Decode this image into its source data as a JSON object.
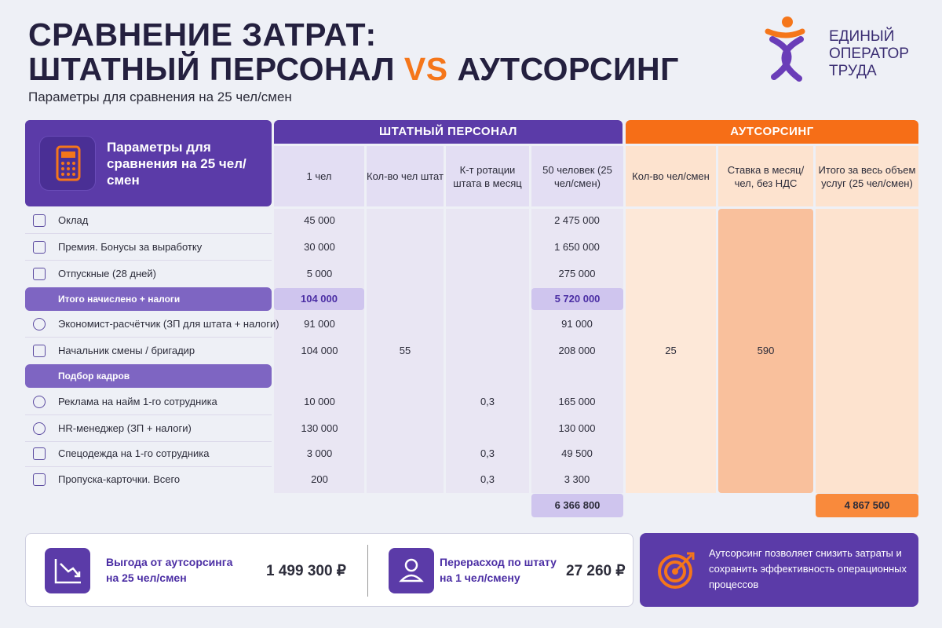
{
  "title": {
    "line1": "СРАВНЕНИЕ ЗАТРАТ:",
    "line2_a": "ШТАТНЫЙ ПЕРСОНАЛ ",
    "line2_vs": "VS",
    "line2_b": " АУТСОРСИНГ"
  },
  "subtitle": "Параметры для сравнения на 25 чел/смен",
  "logo": {
    "line1": "ЕДИНЫЙ",
    "line2": "ОПЕРАТОР",
    "line3": "ТРУДА"
  },
  "params_header": "Параметры для сравнения на 25 чел/смен",
  "group_headers": {
    "staff": "ШТАТНЫЙ ПЕРСОНАЛ",
    "outsourcing": "АУТСОРСИНГ"
  },
  "columns": {
    "staff": [
      "1 чел",
      "Кол-во чел штат",
      "К-т ротации штата в месяц",
      "50 человек (25 чел/смен)"
    ],
    "outsourcing": [
      "Кол-во чел/смен",
      "Ставка в месяц/чел, без НДС",
      "Итого за весь объем услуг (25 чел/смен)"
    ]
  },
  "rows": [
    {
      "label": "Оклад",
      "one": "45 000",
      "kt": "",
      "total50": "2 475 000"
    },
    {
      "label": "Премия. Бонусы за выработку",
      "one": "30 000",
      "kt": "",
      "total50": "1 650 000"
    },
    {
      "label": "Отпускные (28 дней)",
      "one": "5 000",
      "kt": "",
      "total50": "275 000"
    }
  ],
  "subtotal": {
    "label": "Итого начислено + налоги",
    "one": "104 000",
    "total50": "5 720 000"
  },
  "rows2": [
    {
      "label": "Экономист-расчётчик (ЗП для штата + налоги)",
      "one": "91 000",
      "kt": "",
      "total50": "91 000"
    },
    {
      "label": "Начальник смены / бригадир",
      "one": "104 000",
      "kt": "",
      "total50": "208 000"
    }
  ],
  "section": "Подбор кадров",
  "rows3": [
    {
      "label": "Реклама на найм 1-го сотрудника",
      "one": "10 000",
      "kt": "0,3",
      "total50": "165 000"
    },
    {
      "label": "HR-менеджер (ЗП + налоги)",
      "one": "130 000",
      "kt": "",
      "total50": "130 000"
    },
    {
      "label": "Спецодежда на 1-го сотрудника",
      "one": "3 000",
      "kt": "0,3",
      "total50": "49 500"
    },
    {
      "label": "Пропуска-карточки. Всего",
      "one": "200",
      "kt": "0,3",
      "total50": "3 300"
    }
  ],
  "merged": {
    "staff_count": "55",
    "out_count": "25",
    "out_rate": "590"
  },
  "totals": {
    "staff": "6 366 800",
    "outsourcing": "4 867 500"
  },
  "bottom": {
    "benefit_label": "Выгода от аутсорсинга на 25 чел/смен",
    "benefit_value": "1 499 300 ₽",
    "overrun_label": "Перерасход по штату на 1 чел/смену",
    "overrun_value": "27 260 ₽",
    "note": "Аутсорсинг позволяет снизить затраты и сохранить эффективность операционных процессов"
  },
  "colors": {
    "purple": "#5b3ba8",
    "orange": "#f66e17",
    "lavender": "#e3def3",
    "peach": "#fde3cf"
  }
}
